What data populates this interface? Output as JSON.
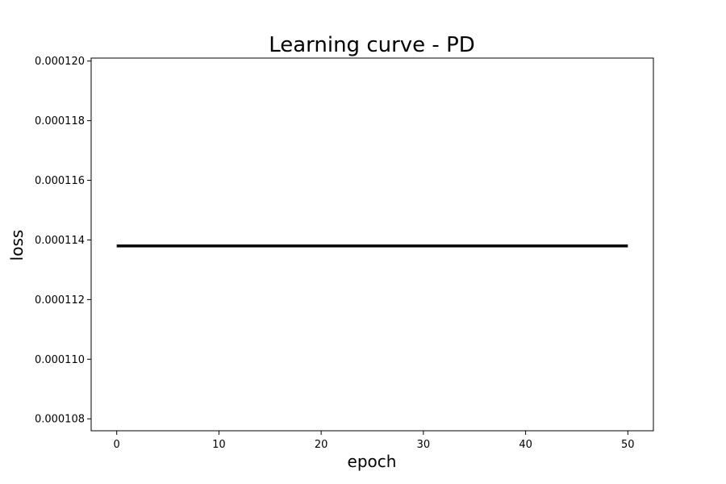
{
  "chart_data": {
    "type": "line",
    "title": "Learning curve - PD",
    "xlabel": "epoch",
    "ylabel": "loss",
    "xlim": [
      -2.5,
      52.5
    ],
    "ylim": [
      0.0001076,
      0.0001201
    ],
    "x_ticks": [
      {
        "value": 0,
        "label": "0"
      },
      {
        "value": 10,
        "label": "10"
      },
      {
        "value": 20,
        "label": "20"
      },
      {
        "value": 30,
        "label": "30"
      },
      {
        "value": 40,
        "label": "40"
      },
      {
        "value": 50,
        "label": "50"
      }
    ],
    "y_ticks": [
      {
        "value": 0.000108,
        "label": "0.000108"
      },
      {
        "value": 0.00011,
        "label": "0.000110"
      },
      {
        "value": 0.000112,
        "label": "0.000112"
      },
      {
        "value": 0.000114,
        "label": "0.000114"
      },
      {
        "value": 0.000116,
        "label": "0.000116"
      },
      {
        "value": 0.000118,
        "label": "0.000118"
      },
      {
        "value": 0.00012,
        "label": "0.000120"
      }
    ],
    "grid": false,
    "series": [
      {
        "color": "#000000",
        "x": [
          0,
          50
        ],
        "y": [
          0.0001138,
          0.0001138
        ]
      }
    ]
  }
}
